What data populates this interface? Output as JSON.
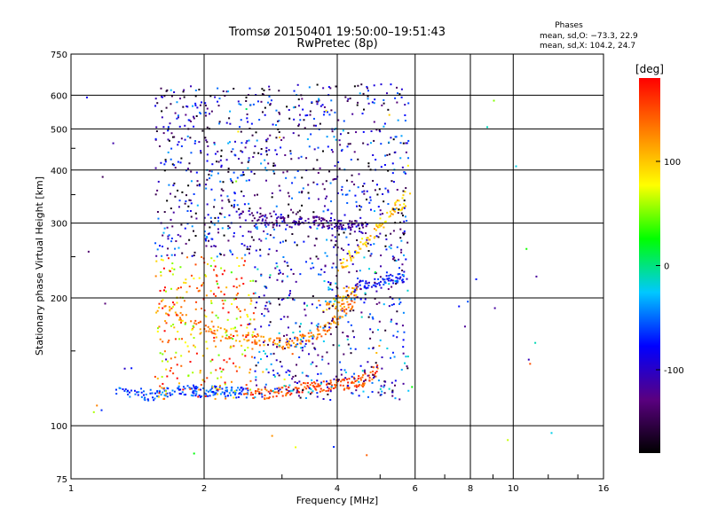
{
  "chart_data": {
    "type": "scatter",
    "title": "Tromsø 20150401 19:50:00–19:51:43",
    "subtitle": "RwPretec (8p)",
    "xlabel": "Frequency [MHz]",
    "ylabel": "Stationary phase Virtual Height [km]",
    "x_scale": "log",
    "y_scale": "log",
    "xlim": [
      1,
      16
    ],
    "ylim": [
      75,
      750
    ],
    "x_ticks": [
      1,
      2,
      4,
      6,
      8,
      10,
      16
    ],
    "y_ticks": [
      75,
      100,
      200,
      300,
      400,
      500,
      600,
      750
    ],
    "x_grid_lines": [
      2,
      4,
      6,
      8,
      10
    ],
    "y_grid_lines": [
      100,
      200,
      300,
      400,
      500,
      600
    ],
    "grid": true,
    "phases_box": {
      "title": "Phases",
      "line1": "mean, sd,O: −73.3, 22.9",
      "line2": "mean, sd,X: 104.2, 24.7"
    },
    "colorbar": {
      "label": "[deg]",
      "range": [
        -180,
        180
      ],
      "ticks": [
        100,
        0,
        -100
      ],
      "colors": [
        "#000000",
        "#5a0080",
        "#0000ff",
        "#00c8ff",
        "#00ff00",
        "#ffff00",
        "#ff8000",
        "#ff0000"
      ]
    },
    "series": [
      {
        "x": [
          1.25,
          1.4,
          1.5,
          1.6,
          1.7,
          1.8,
          1.9,
          2.0,
          2.1,
          2.2,
          2.3,
          2.4,
          2.5
        ],
        "y": [
          120,
          119,
          118,
          119,
          120,
          122,
          121,
          120,
          121,
          120,
          120,
          120,
          119
        ],
        "phase": -60
      },
      {
        "x": [
          2.5,
          2.7,
          2.9,
          3.1,
          3.3,
          3.5,
          3.7,
          3.9,
          4.1,
          4.3,
          4.5,
          4.7,
          4.9
        ],
        "y": [
          119,
          119,
          120,
          121,
          122,
          123,
          124,
          125,
          125,
          126,
          127,
          130,
          135
        ],
        "phase": 150
      },
      {
        "x": [
          1.6,
          1.8,
          2.0,
          2.2,
          2.4,
          2.6,
          2.8,
          3.0,
          3.2,
          3.4,
          3.6,
          3.8,
          4.0,
          4.2,
          4.4
        ],
        "y": [
          190,
          178,
          170,
          165,
          162,
          160,
          158,
          156,
          158,
          160,
          165,
          172,
          180,
          190,
          200
        ],
        "phase": 130
      },
      {
        "x": [
          2.4,
          2.6,
          2.8,
          3.0,
          3.2,
          3.4,
          3.6,
          3.8,
          4.0,
          4.2,
          4.4,
          4.6
        ],
        "y": [
          315,
          310,
          305,
          302,
          300,
          300,
          302,
          298,
          296,
          295,
          295,
          292
        ],
        "phase": -120
      },
      {
        "x": [
          4.0,
          4.3,
          4.6,
          4.9,
          5.2,
          5.5,
          5.8
        ],
        "y": [
          230,
          250,
          270,
          290,
          310,
          330,
          350
        ],
        "phase": 100
      },
      {
        "x": [
          4.3,
          4.6,
          4.9,
          5.2,
          5.5,
          5.7
        ],
        "y": [
          210,
          215,
          218,
          220,
          222,
          225
        ],
        "phase": -80
      },
      {
        "x": [
          3.7,
          4.0,
          4.2,
          4.5
        ],
        "y": [
          190,
          195,
          205,
          210
        ],
        "phase": 110
      }
    ]
  }
}
